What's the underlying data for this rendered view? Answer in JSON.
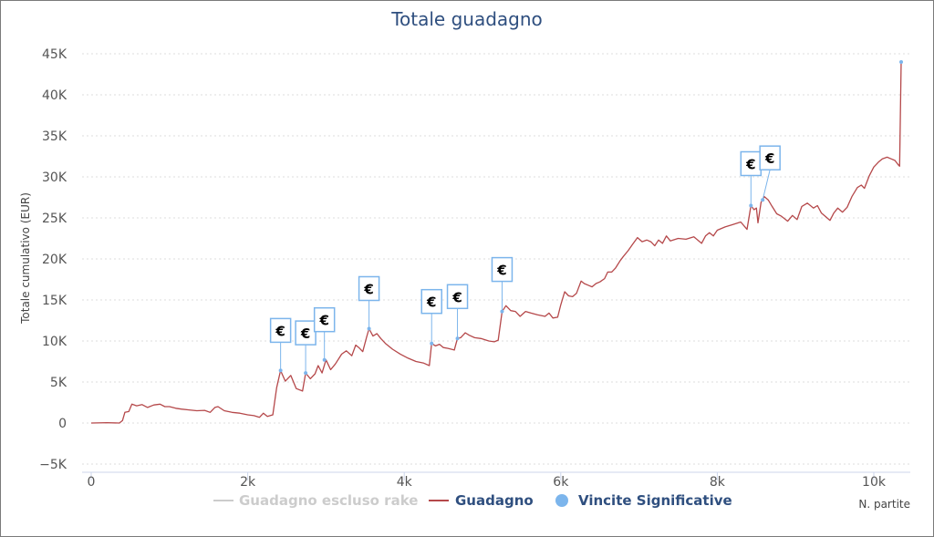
{
  "chart_data": {
    "type": "line",
    "title": "Totale guadagno",
    "ylabel": "Totale cumulativo (EUR)",
    "xlabel": "N. partite",
    "xlim": [
      0,
      10400
    ],
    "ylim": [
      -5000,
      45000
    ],
    "x_ticks": [
      0,
      2000,
      4000,
      6000,
      8000,
      10000
    ],
    "x_tick_labels": [
      "0",
      "2k",
      "4k",
      "6k",
      "8k",
      "10k"
    ],
    "y_ticks": [
      -5000,
      0,
      5000,
      10000,
      15000,
      20000,
      25000,
      30000,
      35000,
      40000,
      45000
    ],
    "y_tick_labels": [
      "−5K",
      "0",
      "5K",
      "10K",
      "15K",
      "20K",
      "25K",
      "30K",
      "35K",
      "40K",
      "45K"
    ],
    "grid": true,
    "legend_position": "bottom",
    "series": [
      {
        "name": "Guadagno escluso rake",
        "color": "#cccccc",
        "hidden": true,
        "points": []
      },
      {
        "name": "Guadagno",
        "color": "#b5484a",
        "points": [
          [
            0,
            0
          ],
          [
            200,
            50
          ],
          [
            360,
            0
          ],
          [
            400,
            300
          ],
          [
            430,
            1300
          ],
          [
            480,
            1400
          ],
          [
            520,
            2300
          ],
          [
            580,
            2100
          ],
          [
            650,
            2250
          ],
          [
            720,
            1900
          ],
          [
            800,
            2200
          ],
          [
            880,
            2300
          ],
          [
            940,
            2000
          ],
          [
            1000,
            2000
          ],
          [
            1080,
            1800
          ],
          [
            1150,
            1700
          ],
          [
            1250,
            1600
          ],
          [
            1350,
            1500
          ],
          [
            1450,
            1550
          ],
          [
            1520,
            1300
          ],
          [
            1580,
            1900
          ],
          [
            1620,
            2000
          ],
          [
            1700,
            1500
          ],
          [
            1800,
            1300
          ],
          [
            1900,
            1200
          ],
          [
            2000,
            1000
          ],
          [
            2080,
            900
          ],
          [
            2150,
            700
          ],
          [
            2200,
            1200
          ],
          [
            2250,
            800
          ],
          [
            2320,
            1000
          ],
          [
            2370,
            4300
          ],
          [
            2420,
            6400
          ],
          [
            2480,
            5100
          ],
          [
            2550,
            5800
          ],
          [
            2620,
            4200
          ],
          [
            2700,
            3900
          ],
          [
            2740,
            6100
          ],
          [
            2800,
            5400
          ],
          [
            2860,
            6000
          ],
          [
            2900,
            7000
          ],
          [
            2950,
            6100
          ],
          [
            3000,
            7700
          ],
          [
            3060,
            6500
          ],
          [
            3120,
            7200
          ],
          [
            3200,
            8400
          ],
          [
            3260,
            8800
          ],
          [
            3330,
            8200
          ],
          [
            3380,
            9500
          ],
          [
            3420,
            9200
          ],
          [
            3470,
            8700
          ],
          [
            3520,
            10500
          ],
          [
            3550,
            11500
          ],
          [
            3600,
            10600
          ],
          [
            3650,
            10900
          ],
          [
            3700,
            10300
          ],
          [
            3760,
            9700
          ],
          [
            3850,
            9000
          ],
          [
            3950,
            8400
          ],
          [
            4050,
            7900
          ],
          [
            4150,
            7500
          ],
          [
            4250,
            7300
          ],
          [
            4320,
            7000
          ],
          [
            4350,
            9700
          ],
          [
            4400,
            9400
          ],
          [
            4450,
            9600
          ],
          [
            4500,
            9200
          ],
          [
            4560,
            9100
          ],
          [
            4640,
            8900
          ],
          [
            4680,
            10300
          ],
          [
            4720,
            10400
          ],
          [
            4780,
            11000
          ],
          [
            4830,
            10700
          ],
          [
            4900,
            10400
          ],
          [
            4980,
            10300
          ],
          [
            5080,
            10000
          ],
          [
            5150,
            9900
          ],
          [
            5200,
            10100
          ],
          [
            5250,
            13600
          ],
          [
            5300,
            14300
          ],
          [
            5360,
            13700
          ],
          [
            5420,
            13600
          ],
          [
            5480,
            13000
          ],
          [
            5550,
            13600
          ],
          [
            5620,
            13400
          ],
          [
            5700,
            13200
          ],
          [
            5800,
            13000
          ],
          [
            5850,
            13400
          ],
          [
            5900,
            12800
          ],
          [
            5960,
            12900
          ],
          [
            6000,
            14400
          ],
          [
            6050,
            16000
          ],
          [
            6100,
            15500
          ],
          [
            6150,
            15400
          ],
          [
            6200,
            15800
          ],
          [
            6260,
            17300
          ],
          [
            6300,
            17000
          ],
          [
            6350,
            16800
          ],
          [
            6400,
            16600
          ],
          [
            6450,
            17000
          ],
          [
            6500,
            17200
          ],
          [
            6560,
            17600
          ],
          [
            6600,
            18400
          ],
          [
            6650,
            18400
          ],
          [
            6700,
            18900
          ],
          [
            6760,
            19800
          ],
          [
            6800,
            20300
          ],
          [
            6860,
            21000
          ],
          [
            6920,
            21800
          ],
          [
            6980,
            22600
          ],
          [
            7040,
            22100
          ],
          [
            7100,
            22300
          ],
          [
            7150,
            22100
          ],
          [
            7200,
            21600
          ],
          [
            7250,
            22300
          ],
          [
            7300,
            21900
          ],
          [
            7350,
            22800
          ],
          [
            7400,
            22200
          ],
          [
            7500,
            22500
          ],
          [
            7600,
            22400
          ],
          [
            7700,
            22700
          ],
          [
            7800,
            21900
          ],
          [
            7850,
            22800
          ],
          [
            7900,
            23200
          ],
          [
            7950,
            22800
          ],
          [
            8000,
            23500
          ],
          [
            8100,
            23900
          ],
          [
            8200,
            24200
          ],
          [
            8300,
            24500
          ],
          [
            8380,
            23600
          ],
          [
            8430,
            26500
          ],
          [
            8470,
            26000
          ],
          [
            8500,
            26200
          ],
          [
            8520,
            24400
          ],
          [
            8560,
            26900
          ],
          [
            8600,
            27600
          ],
          [
            8650,
            27200
          ],
          [
            8700,
            26400
          ],
          [
            8760,
            25500
          ],
          [
            8820,
            25200
          ],
          [
            8900,
            24600
          ],
          [
            8960,
            25300
          ],
          [
            9020,
            24800
          ],
          [
            9080,
            26400
          ],
          [
            9150,
            26800
          ],
          [
            9230,
            26200
          ],
          [
            9280,
            26500
          ],
          [
            9330,
            25600
          ],
          [
            9380,
            25200
          ],
          [
            9440,
            24700
          ],
          [
            9490,
            25600
          ],
          [
            9540,
            26200
          ],
          [
            9600,
            25700
          ],
          [
            9660,
            26300
          ],
          [
            9720,
            27600
          ],
          [
            9790,
            28700
          ],
          [
            9840,
            29000
          ],
          [
            9880,
            28600
          ],
          [
            9940,
            30100
          ],
          [
            10000,
            31200
          ],
          [
            10060,
            31800
          ],
          [
            10110,
            32200
          ],
          [
            10170,
            32400
          ],
          [
            10220,
            32200
          ],
          [
            10270,
            32000
          ],
          [
            10310,
            31500
          ],
          [
            10330,
            31300
          ],
          [
            10350,
            44000
          ]
        ]
      }
    ],
    "markers": {
      "name": "Vincite Significative",
      "color": "#7cb5ec",
      "symbol": "€",
      "points": [
        [
          2420,
          6400
        ],
        [
          2740,
          6100
        ],
        [
          2980,
          7700
        ],
        [
          3550,
          11500
        ],
        [
          4350,
          9700
        ],
        [
          4680,
          10300
        ],
        [
          5250,
          13600
        ],
        [
          8430,
          26500
        ],
        [
          8580,
          27200
        ],
        [
          10350,
          44000
        ]
      ],
      "flagged": [
        0,
        1,
        2,
        3,
        4,
        5,
        6,
        7,
        8
      ]
    }
  }
}
